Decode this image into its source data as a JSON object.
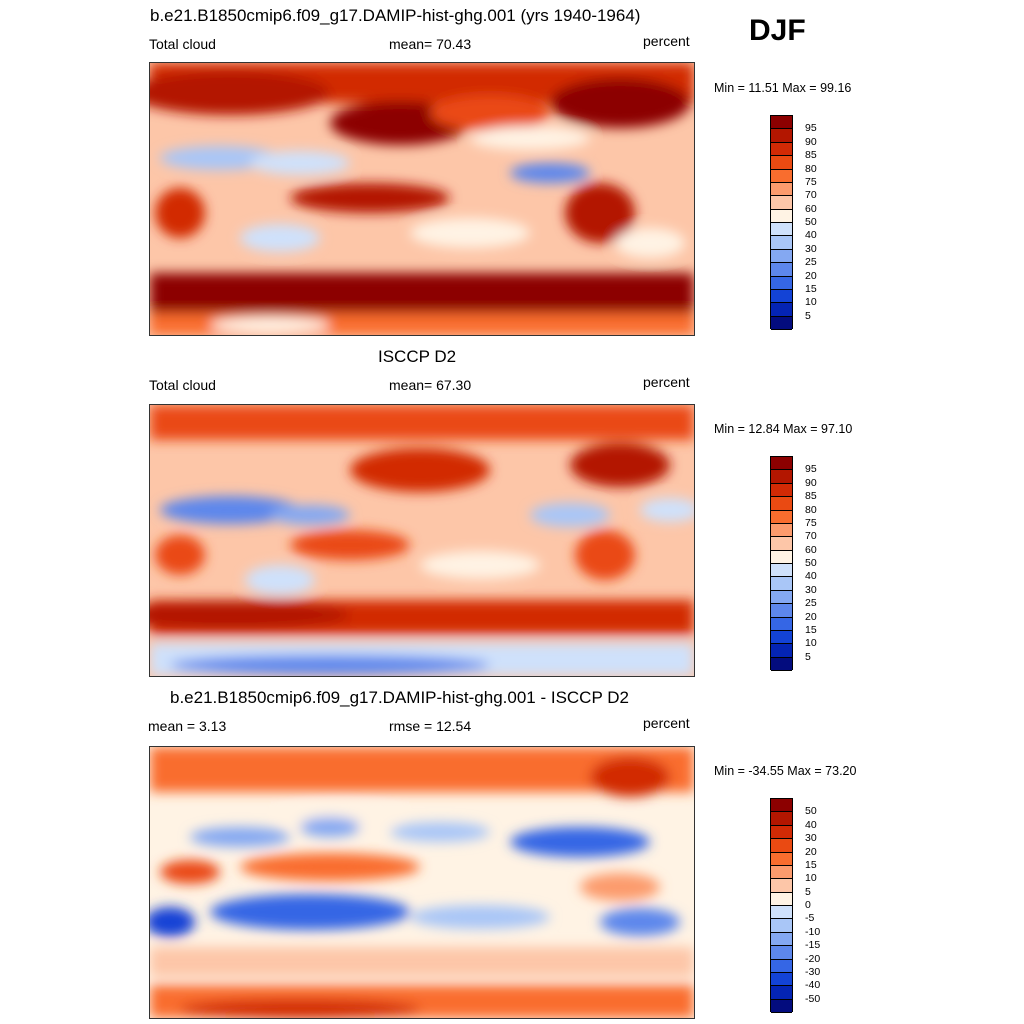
{
  "season": "DJF",
  "panels": [
    {
      "title": "b.e21.B1850cmip6.f09_g17.DAMIP-hist-ghg.001 (yrs 1940-1964)",
      "left_label": "Total cloud",
      "mid_label": "mean=  70.43",
      "right_label": "percent",
      "minmax": "Min =  11.51 Max =  99.16",
      "colorbar_labels": [
        "95",
        "90",
        "85",
        "80",
        "75",
        "70",
        "60",
        "50",
        "40",
        "30",
        "25",
        "20",
        "15",
        "10",
        "5"
      ],
      "colorbar_colors": [
        "#8c0000",
        "#b31600",
        "#d22a05",
        "#ea4a12",
        "#f96d2e",
        "#fc9b6d",
        "#fdc6a8",
        "#fff3e4",
        "#cfe1fb",
        "#a9c6f7",
        "#84a8f2",
        "#5d87ec",
        "#3566e5",
        "#1343d6",
        "#0424b4",
        "#030c7e"
      ]
    },
    {
      "title": "ISCCP D2",
      "left_label": "Total cloud",
      "mid_label": "mean=  67.30",
      "right_label": "percent",
      "minmax": "Min =  12.84 Max =  97.10",
      "colorbar_labels": [
        "95",
        "90",
        "85",
        "80",
        "75",
        "70",
        "60",
        "50",
        "40",
        "30",
        "25",
        "20",
        "15",
        "10",
        "5"
      ],
      "colorbar_colors": [
        "#8c0000",
        "#b31600",
        "#d22a05",
        "#ea4a12",
        "#f96d2e",
        "#fc9b6d",
        "#fdc6a8",
        "#fff3e4",
        "#cfe1fb",
        "#a9c6f7",
        "#84a8f2",
        "#5d87ec",
        "#3566e5",
        "#1343d6",
        "#0424b4",
        "#030c7e"
      ]
    },
    {
      "title": "b.e21.B1850cmip6.f09_g17.DAMIP-hist-ghg.001 - ISCCP D2",
      "left_label": "mean =   3.13",
      "mid_label": "rmse =  12.54",
      "right_label": "percent",
      "minmax": "Min = -34.55 Max =  73.20",
      "colorbar_labels": [
        "50",
        "40",
        "30",
        "20",
        "15",
        "10",
        "5",
        "0",
        "-5",
        "-10",
        "-15",
        "-20",
        "-30",
        "-40",
        "-50"
      ],
      "colorbar_colors": [
        "#8c0000",
        "#b31600",
        "#d22a05",
        "#ea4a12",
        "#f96d2e",
        "#fc9b6d",
        "#fdc6a8",
        "#fff3e4",
        "#cfe1fb",
        "#a9c6f7",
        "#84a8f2",
        "#5d87ec",
        "#3566e5",
        "#1343d6",
        "#0424b4",
        "#030c7e"
      ]
    }
  ]
}
